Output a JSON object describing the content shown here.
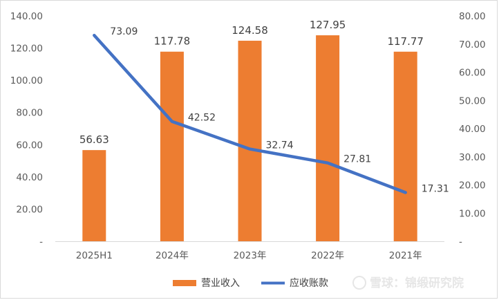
{
  "colors": {
    "bar": "#ED7D31",
    "line": "#4472C4",
    "axis": "#d9d9d9"
  },
  "chart_data": {
    "type": "bar",
    "categories": [
      "2025H1",
      "2024年",
      "2023年",
      "2022年",
      "2021年"
    ],
    "series": [
      {
        "name": "营业收入",
        "type": "bar",
        "axis": "left",
        "values": [
          56.63,
          117.78,
          124.58,
          127.95,
          117.77
        ]
      },
      {
        "name": "应收账款",
        "type": "line",
        "axis": "right",
        "values": [
          73.09,
          42.52,
          32.74,
          27.81,
          17.31
        ]
      }
    ],
    "y_left": {
      "ylim": [
        0,
        140
      ],
      "ticks": [
        "-",
        "20.00",
        "40.00",
        "60.00",
        "80.00",
        "100.00",
        "120.00",
        "140.00"
      ]
    },
    "y_right": {
      "ylim": [
        0,
        80
      ],
      "ticks": [
        "-",
        "10.00",
        "20.00",
        "30.00",
        "40.00",
        "50.00",
        "60.00",
        "70.00",
        "80.00"
      ]
    },
    "bar_labels": [
      "56.63",
      "117.78",
      "124.58",
      "127.95",
      "117.77"
    ],
    "line_labels": [
      "73.09",
      "42.52",
      "32.74",
      "27.81",
      "17.31"
    ],
    "legend": [
      "营业收入",
      "应收账款"
    ],
    "legend_position": "bottom",
    "grid": false
  },
  "watermark": "雪球：锦缎研究院"
}
